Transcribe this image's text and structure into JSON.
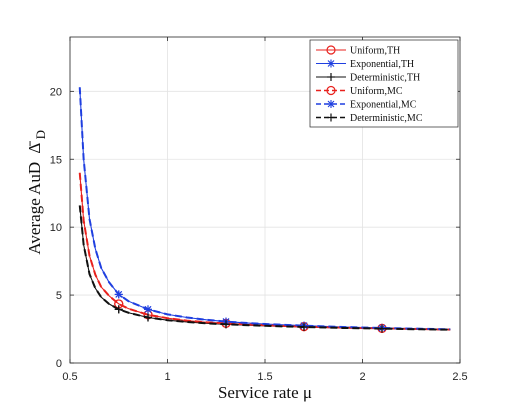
{
  "chart_data": {
    "type": "line",
    "xlabel": "Service rate μ",
    "ylabel": "Average AuD",
    "ylabel_symbol": "Δ̄",
    "ylabel_subscript": "D",
    "xlim": [
      0.5,
      2.5
    ],
    "ylim": [
      0,
      24
    ],
    "xticks": [
      0.5,
      1,
      1.5,
      2,
      2.5
    ],
    "xtick_labels": [
      "0.5",
      "1",
      "1.5",
      "2",
      "2.5"
    ],
    "yticks": [
      0,
      5,
      10,
      15,
      20
    ],
    "ytick_labels": [
      "0",
      "5",
      "10",
      "15",
      "20"
    ],
    "grid": true,
    "legend_position": "top-right",
    "x": [
      0.55,
      0.57,
      0.6,
      0.63,
      0.66,
      0.7,
      0.75,
      0.8,
      0.9,
      1.0,
      1.1,
      1.2,
      1.3,
      1.4,
      1.5,
      1.7,
      1.9,
      2.1,
      2.3,
      2.45
    ],
    "series": [
      {
        "name": "Uniform,TH",
        "color": "#e8211d",
        "dash": "solid",
        "marker": "circle",
        "marker_x": [
          0.75,
          0.9,
          1.3,
          1.7,
          2.1
        ],
        "values": [
          14.0,
          10.5,
          7.9,
          6.5,
          5.6,
          4.95,
          4.35,
          4.0,
          3.55,
          3.3,
          3.12,
          3.0,
          2.92,
          2.84,
          2.78,
          2.68,
          2.6,
          2.55,
          2.5,
          2.46
        ]
      },
      {
        "name": "Exponential,TH",
        "color": "#1f3fe0",
        "dash": "solid",
        "marker": "asterisk",
        "marker_x": [
          0.75,
          0.9,
          1.3,
          1.7,
          2.1
        ],
        "values": [
          20.3,
          15.0,
          10.6,
          8.4,
          7.0,
          5.95,
          5.05,
          4.55,
          3.95,
          3.58,
          3.35,
          3.18,
          3.05,
          2.95,
          2.87,
          2.75,
          2.65,
          2.58,
          2.52,
          2.48
        ]
      },
      {
        "name": "Deterministic,TH",
        "color": "#111111",
        "dash": "solid",
        "marker": "plus",
        "marker_x": [
          0.75,
          0.9,
          1.3,
          1.7,
          2.1
        ],
        "values": [
          11.6,
          8.7,
          6.55,
          5.5,
          4.85,
          4.35,
          3.95,
          3.7,
          3.35,
          3.15,
          3.02,
          2.92,
          2.85,
          2.79,
          2.74,
          2.65,
          2.58,
          2.53,
          2.48,
          2.45
        ]
      },
      {
        "name": "Uniform,MC",
        "color": "#e8211d",
        "dash": "dashed",
        "marker": "circle",
        "marker_x": [
          0.75,
          0.9,
          1.3,
          1.7,
          2.1
        ],
        "values": [
          14.0,
          10.5,
          7.9,
          6.5,
          5.6,
          4.95,
          4.35,
          4.0,
          3.55,
          3.3,
          3.12,
          3.0,
          2.92,
          2.84,
          2.78,
          2.68,
          2.6,
          2.55,
          2.5,
          2.46
        ]
      },
      {
        "name": "Exponential,MC",
        "color": "#1f3fe0",
        "dash": "dashed",
        "marker": "asterisk",
        "marker_x": [
          0.75,
          0.9,
          1.3,
          1.7,
          2.1
        ],
        "values": [
          20.3,
          15.0,
          10.6,
          8.4,
          7.0,
          5.95,
          5.05,
          4.55,
          3.95,
          3.58,
          3.35,
          3.18,
          3.05,
          2.95,
          2.87,
          2.75,
          2.65,
          2.58,
          2.52,
          2.48
        ]
      },
      {
        "name": "Deterministic,MC",
        "color": "#111111",
        "dash": "dashed",
        "marker": "plus",
        "marker_x": [
          0.75,
          0.9,
          1.3,
          1.7,
          2.1
        ],
        "values": [
          11.6,
          8.7,
          6.55,
          5.5,
          4.85,
          4.35,
          3.95,
          3.7,
          3.35,
          3.15,
          3.02,
          2.92,
          2.85,
          2.79,
          2.74,
          2.65,
          2.58,
          2.53,
          2.48,
          2.45
        ]
      }
    ]
  }
}
